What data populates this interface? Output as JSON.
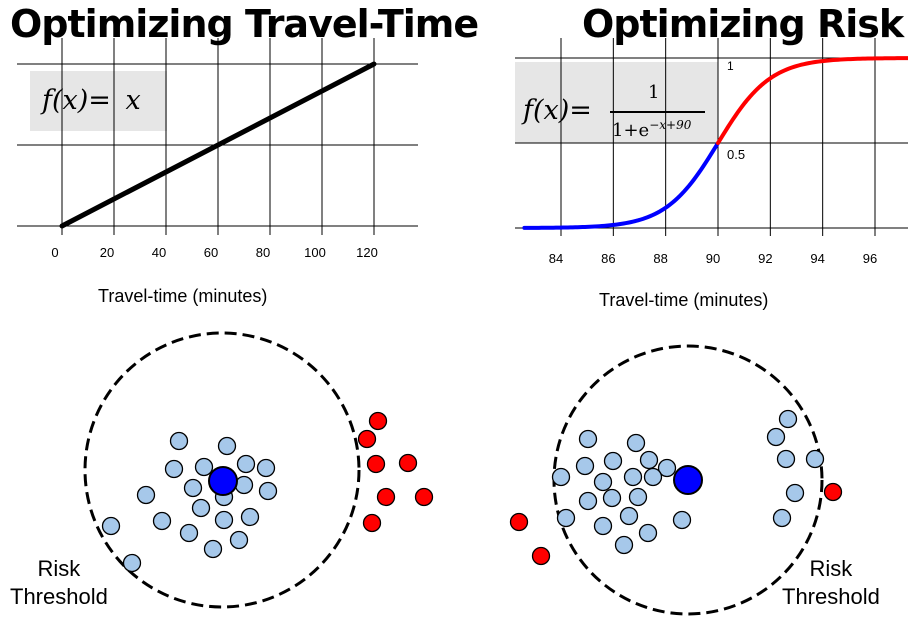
{
  "panel_left": {
    "title": "Optimizing Travel-Time",
    "formula_lhs": "f(x)=",
    "formula_rhs": "x",
    "axis_title": "Travel-time (minutes)",
    "chart_data": {
      "type": "line",
      "xlabel": "Travel-time (minutes)",
      "x_ticks": [
        0,
        20,
        40,
        60,
        80,
        100,
        120
      ],
      "xlim": [
        -3,
        130
      ],
      "series": [
        {
          "x": [
            0,
            120
          ],
          "y": [
            0,
            120
          ],
          "color": "#000000"
        }
      ],
      "grid": true
    }
  },
  "panel_right": {
    "title": "Optimizing Risk",
    "formula_lhs": "f(x)=",
    "formula_num": "1",
    "formula_den": "1+e",
    "formula_exp": "−x+90",
    "axis_title": "Travel-time (minutes)",
    "label_top": "1",
    "label_mid": "0.5",
    "chart_data": {
      "type": "line",
      "xlabel": "Travel-time (minutes)",
      "x_ticks": [
        84,
        86,
        88,
        90,
        92,
        94,
        96
      ],
      "xlim": [
        82.6,
        97.5
      ],
      "ylim": [
        0,
        1
      ],
      "function": "1/(1+e^(-x+90))",
      "series": [
        {
          "range": [
            82.6,
            90
          ],
          "color": "#0000ff"
        },
        {
          "range": [
            90,
            97.5
          ],
          "color": "#ff0000"
        }
      ],
      "grid": true
    }
  },
  "bottom_left": {
    "threshold_line1": "Risk",
    "threshold_line2": "Threshold"
  },
  "bottom_right": {
    "threshold_line1": "Risk",
    "threshold_line2": "Threshold"
  },
  "colors": {
    "light_blue": "#a6c8ea",
    "blue": "#0000ff",
    "red": "#ff0000",
    "formula_bg": "#e6e6e6"
  }
}
